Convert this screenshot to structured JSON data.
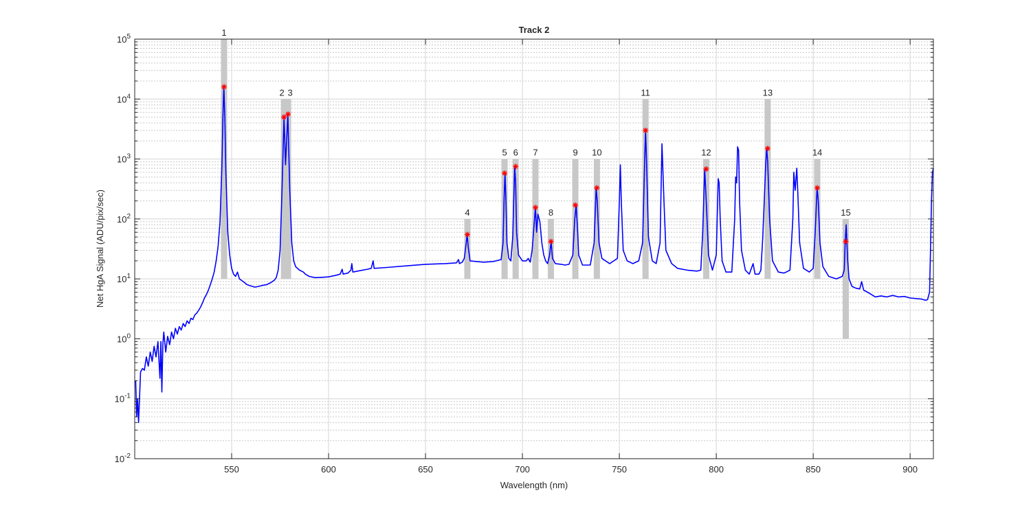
{
  "chart_data": {
    "type": "line",
    "title": "Track 2",
    "xlabel": "Wavelength (nm)",
    "ylabel": "Net HgA Signal (ADU/pix/sec)",
    "xlim": [
      500,
      912
    ],
    "ylim": [
      0.01,
      100000
    ],
    "yscale": "log",
    "grid": true,
    "minor_grid": true,
    "x_ticks": [
      550,
      600,
      650,
      700,
      750,
      800,
      850,
      900
    ],
    "y_ticks": [
      {
        "value": 0.01,
        "base": "10",
        "exp": "-2"
      },
      {
        "value": 0.1,
        "base": "10",
        "exp": "-1"
      },
      {
        "value": 1,
        "base": "10",
        "exp": "0"
      },
      {
        "value": 10,
        "base": "10",
        "exp": "1"
      },
      {
        "value": 100,
        "base": "10",
        "exp": "2"
      },
      {
        "value": 1000,
        "base": "10",
        "exp": "3"
      },
      {
        "value": 10000,
        "base": "10",
        "exp": "4"
      },
      {
        "value": 100000,
        "base": "10",
        "exp": "5"
      }
    ],
    "series": [
      {
        "color": "#0000ff",
        "points": [
          [
            500.5,
            0.2
          ],
          [
            501.0,
            0.05
          ],
          [
            501.5,
            0.1
          ],
          [
            502.0,
            0.04
          ],
          [
            503.0,
            0.28
          ],
          [
            504.0,
            0.32
          ],
          [
            505.0,
            0.3
          ],
          [
            506.0,
            0.5
          ],
          [
            507.0,
            0.35
          ],
          [
            508.0,
            0.6
          ],
          [
            509.0,
            0.42
          ],
          [
            510.0,
            0.75
          ],
          [
            511.0,
            0.5
          ],
          [
            512.0,
            0.9
          ],
          [
            513.0,
            0.22
          ],
          [
            513.5,
            0.9
          ],
          [
            514.0,
            0.13
          ],
          [
            514.5,
            0.8
          ],
          [
            515.0,
            1.3
          ],
          [
            516.0,
            0.6
          ],
          [
            517.0,
            1.1
          ],
          [
            518.0,
            0.8
          ],
          [
            519.0,
            1.3
          ],
          [
            520.0,
            1.0
          ],
          [
            521.0,
            1.5
          ],
          [
            522.0,
            1.2
          ],
          [
            523.0,
            1.6
          ],
          [
            524.0,
            1.4
          ],
          [
            525.0,
            1.8
          ],
          [
            526.0,
            1.6
          ],
          [
            527.0,
            2.0
          ],
          [
            528.0,
            1.8
          ],
          [
            529.0,
            2.2
          ],
          [
            530.0,
            2.1
          ],
          [
            531.0,
            2.5
          ],
          [
            532.0,
            2.7
          ],
          [
            533.0,
            3.0
          ],
          [
            534.0,
            3.4
          ],
          [
            535.0,
            4.0
          ],
          [
            536.0,
            4.8
          ],
          [
            537.0,
            5.5
          ],
          [
            538.0,
            6.5
          ],
          [
            539.0,
            8.0
          ],
          [
            540.0,
            10.0
          ],
          [
            541.0,
            13.0
          ],
          [
            542.0,
            20.0
          ],
          [
            543.0,
            35.0
          ],
          [
            544.0,
            90.0
          ],
          [
            545.0,
            800.0
          ],
          [
            545.5,
            5000.0
          ],
          [
            546.0,
            16000.0
          ],
          [
            546.5,
            5000.0
          ],
          [
            547.0,
            600.0
          ],
          [
            548.0,
            60.0
          ],
          [
            549.0,
            25.0
          ],
          [
            550.0,
            15.0
          ],
          [
            551.0,
            12.0
          ],
          [
            552.0,
            11.0
          ],
          [
            553.0,
            13.0
          ],
          [
            554.0,
            10.0
          ],
          [
            556.0,
            9.0
          ],
          [
            558.0,
            8.0
          ],
          [
            560.0,
            7.6
          ],
          [
            562.0,
            7.3
          ],
          [
            564.0,
            7.5
          ],
          [
            566.0,
            7.8
          ],
          [
            568.0,
            8.0
          ],
          [
            570.0,
            8.6
          ],
          [
            572.0,
            9.5
          ],
          [
            573.0,
            10.5
          ],
          [
            574.0,
            14.0
          ],
          [
            575.0,
            30.0
          ],
          [
            576.0,
            300.0
          ],
          [
            577.0,
            5000.0
          ],
          [
            577.8,
            800.0
          ],
          [
            579.0,
            5600.0
          ],
          [
            580.0,
            300.0
          ],
          [
            581.0,
            40.0
          ],
          [
            582.0,
            20.0
          ],
          [
            583.0,
            16.0
          ],
          [
            585.0,
            14.0
          ],
          [
            587.0,
            13.0
          ],
          [
            588.0,
            12.0
          ],
          [
            590.0,
            11.0
          ],
          [
            593.0,
            10.5
          ],
          [
            596.0,
            10.6
          ],
          [
            600.0,
            10.8
          ],
          [
            604.0,
            11.5
          ],
          [
            606.0,
            12.0
          ],
          [
            607.0,
            14.5
          ],
          [
            607.5,
            12.0
          ],
          [
            610.0,
            12.5
          ],
          [
            611.5,
            14.0
          ],
          [
            612.0,
            18.0
          ],
          [
            612.5,
            13.0
          ],
          [
            615.0,
            13.5
          ],
          [
            620.0,
            14.5
          ],
          [
            622.0,
            15.0
          ],
          [
            623.0,
            20.0
          ],
          [
            623.5,
            15.0
          ],
          [
            630.0,
            15.5
          ],
          [
            640.0,
            16.5
          ],
          [
            650.0,
            17.5
          ],
          [
            660.0,
            18.0
          ],
          [
            666.0,
            18.5
          ],
          [
            667.0,
            21.0
          ],
          [
            667.5,
            18.0
          ],
          [
            669.0,
            19.0
          ],
          [
            670.0,
            22.0
          ],
          [
            671.0,
            40.0
          ],
          [
            671.5,
            55.0
          ],
          [
            672.0,
            35.0
          ],
          [
            673.0,
            20.0
          ],
          [
            676.0,
            19.5
          ],
          [
            680.0,
            19.0
          ],
          [
            685.0,
            19.5
          ],
          [
            689.0,
            21.0
          ],
          [
            690.0,
            40.0
          ],
          [
            690.5,
            200.0
          ],
          [
            691.0,
            580.0
          ],
          [
            691.5,
            200.0
          ],
          [
            692.0,
            40.0
          ],
          [
            693.0,
            22.0
          ],
          [
            694.0,
            20.0
          ],
          [
            695.0,
            50.0
          ],
          [
            696.0,
            750.0
          ],
          [
            696.5,
            400.0
          ],
          [
            697.0,
            60.0
          ],
          [
            698.0,
            25.0
          ],
          [
            700.0,
            20.0
          ],
          [
            702.0,
            20.0
          ],
          [
            703.0,
            22.0
          ],
          [
            704.0,
            19.0
          ],
          [
            705.0,
            30.0
          ],
          [
            706.0,
            80.0
          ],
          [
            706.7,
            155.0
          ],
          [
            707.3,
            60.0
          ],
          [
            708.0,
            120.0
          ],
          [
            709.0,
            90.0
          ],
          [
            710.0,
            40.0
          ],
          [
            711.0,
            25.0
          ],
          [
            712.0,
            20.0
          ],
          [
            713.0,
            18.0
          ],
          [
            714.0,
            25.0
          ],
          [
            714.8,
            42.0
          ],
          [
            715.5,
            22.0
          ],
          [
            717.0,
            18.0
          ],
          [
            720.0,
            17.5
          ],
          [
            722.0,
            17.0
          ],
          [
            724.0,
            17.5
          ],
          [
            726.0,
            25.0
          ],
          [
            727.0,
            100.0
          ],
          [
            727.7,
            170.0
          ],
          [
            728.5,
            60.0
          ],
          [
            729.0,
            25.0
          ],
          [
            731.0,
            17.0
          ],
          [
            735.0,
            17.0
          ],
          [
            737.0,
            40.0
          ],
          [
            738.0,
            330.0
          ],
          [
            738.6,
            200.0
          ],
          [
            739.5,
            40.0
          ],
          [
            741.0,
            22.0
          ],
          [
            745.0,
            18.0
          ],
          [
            749.0,
            22.0
          ],
          [
            750.0,
            200.0
          ],
          [
            750.5,
            800.0
          ],
          [
            751.0,
            200.0
          ],
          [
            752.0,
            30.0
          ],
          [
            754.0,
            20.0
          ],
          [
            757.0,
            18.0
          ],
          [
            760.0,
            20.0
          ],
          [
            762.0,
            40.0
          ],
          [
            763.0,
            800.0
          ],
          [
            763.5,
            3000.0
          ],
          [
            764.0,
            1000.0
          ],
          [
            765.0,
            50.0
          ],
          [
            767.0,
            20.0
          ],
          [
            769.0,
            18.0
          ],
          [
            771.0,
            40.0
          ],
          [
            772.0,
            1800.0
          ],
          [
            773.0,
            200.0
          ],
          [
            774.0,
            30.0
          ],
          [
            777.0,
            18.0
          ],
          [
            780.0,
            15.0
          ],
          [
            785.0,
            14.0
          ],
          [
            790.0,
            13.5
          ],
          [
            792.0,
            14.0
          ],
          [
            793.0,
            60.0
          ],
          [
            794.0,
            680.0
          ],
          [
            795.0,
            150.0
          ],
          [
            796.0,
            25.0
          ],
          [
            798.0,
            14.0
          ],
          [
            800.0,
            25.0
          ],
          [
            801.0,
            470.0
          ],
          [
            801.5,
            400.0
          ],
          [
            802.0,
            100.0
          ],
          [
            803.0,
            20.0
          ],
          [
            805.0,
            13.0
          ],
          [
            808.0,
            13.0
          ],
          [
            809.5,
            100.0
          ],
          [
            810.0,
            500.0
          ],
          [
            810.5,
            400.0
          ],
          [
            811.0,
            1600.0
          ],
          [
            811.5,
            1400.0
          ],
          [
            812.0,
            200.0
          ],
          [
            813.0,
            30.0
          ],
          [
            815.0,
            14.0
          ],
          [
            817.0,
            12.0
          ],
          [
            819.0,
            18.0
          ],
          [
            820.0,
            12.0
          ],
          [
            822.0,
            12.0
          ],
          [
            823.0,
            14.0
          ],
          [
            824.0,
            50.0
          ],
          [
            825.5,
            800.0
          ],
          [
            826.0,
            1500.0
          ],
          [
            826.5,
            900.0
          ],
          [
            827.5,
            100.0
          ],
          [
            829.0,
            20.0
          ],
          [
            832.0,
            13.0
          ],
          [
            835.0,
            12.5
          ],
          [
            838.0,
            14.0
          ],
          [
            839.5,
            100.0
          ],
          [
            840.0,
            600.0
          ],
          [
            840.7,
            300.0
          ],
          [
            841.5,
            700.0
          ],
          [
            842.0,
            300.0
          ],
          [
            843.0,
            40.0
          ],
          [
            845.0,
            15.0
          ],
          [
            848.0,
            13.0
          ],
          [
            850.0,
            15.0
          ],
          [
            851.0,
            60.0
          ],
          [
            852.0,
            330.0
          ],
          [
            852.6,
            200.0
          ],
          [
            853.5,
            40.0
          ],
          [
            855.0,
            16.0
          ],
          [
            858.0,
            11.0
          ],
          [
            862.0,
            10.0
          ],
          [
            865.0,
            11.0
          ],
          [
            866.0,
            14.0
          ],
          [
            866.5,
            42.0
          ],
          [
            867.0,
            80.0
          ],
          [
            867.8,
            20.0
          ],
          [
            868.5,
            10.0
          ],
          [
            870.0,
            7.5
          ],
          [
            872.0,
            7.0
          ],
          [
            874.0,
            6.8
          ],
          [
            875.0,
            9.0
          ],
          [
            876.0,
            6.5
          ],
          [
            878.0,
            6.0
          ],
          [
            880.0,
            5.5
          ],
          [
            882.0,
            5.0
          ],
          [
            885.0,
            5.2
          ],
          [
            888.0,
            5.0
          ],
          [
            891.0,
            5.3
          ],
          [
            894.0,
            5.0
          ],
          [
            897.0,
            5.1
          ],
          [
            900.0,
            4.8
          ],
          [
            903.0,
            4.7
          ],
          [
            906.0,
            4.6
          ],
          [
            908.0,
            4.4
          ],
          [
            909.0,
            4.5
          ],
          [
            910.0,
            6.0
          ],
          [
            910.5,
            30.0
          ],
          [
            911.0,
            200.0
          ],
          [
            911.5,
            600.0
          ],
          [
            912.0,
            700.0
          ]
        ]
      }
    ],
    "peaks": [
      {
        "label": "1",
        "wavelength": 546.1,
        "peak_value": 16000,
        "band_top": 100000,
        "band_bottom": 10
      },
      {
        "label": "2",
        "wavelength": 577.0,
        "peak_value": 5000,
        "band_top": 10000,
        "band_bottom": 10
      },
      {
        "label": "3",
        "wavelength": 579.1,
        "peak_value": 5600,
        "band_top": 10000,
        "band_bottom": 10
      },
      {
        "label": "4",
        "wavelength": 671.6,
        "peak_value": 55,
        "band_top": 100,
        "band_bottom": 10
      },
      {
        "label": "5",
        "wavelength": 690.8,
        "peak_value": 580,
        "band_top": 1000,
        "band_bottom": 10
      },
      {
        "label": "6",
        "wavelength": 696.5,
        "peak_value": 750,
        "band_top": 1000,
        "band_bottom": 10
      },
      {
        "label": "7",
        "wavelength": 706.7,
        "peak_value": 155,
        "band_top": 1000,
        "band_bottom": 10
      },
      {
        "label": "8",
        "wavelength": 714.7,
        "peak_value": 42,
        "band_top": 100,
        "band_bottom": 10
      },
      {
        "label": "9",
        "wavelength": 727.3,
        "peak_value": 170,
        "band_top": 1000,
        "band_bottom": 10
      },
      {
        "label": "10",
        "wavelength": 738.4,
        "peak_value": 330,
        "band_top": 1000,
        "band_bottom": 10
      },
      {
        "label": "11",
        "wavelength": 763.5,
        "peak_value": 3000,
        "band_top": 10000,
        "band_bottom": 10
      },
      {
        "label": "12",
        "wavelength": 794.8,
        "peak_value": 680,
        "band_top": 1000,
        "band_bottom": 10
      },
      {
        "label": "13",
        "wavelength": 826.5,
        "peak_value": 1500,
        "band_top": 10000,
        "band_bottom": 10
      },
      {
        "label": "14",
        "wavelength": 852.1,
        "peak_value": 330,
        "band_top": 1000,
        "band_bottom": 10
      },
      {
        "label": "15",
        "wavelength": 866.8,
        "peak_value": 42,
        "band_top": 100,
        "band_bottom": 1
      }
    ],
    "colors": {
      "line": "#0000ff",
      "marker": "#ff0000",
      "band": "#c8c8c8",
      "grid": "#dcdcdc",
      "axis": "#262626"
    }
  }
}
